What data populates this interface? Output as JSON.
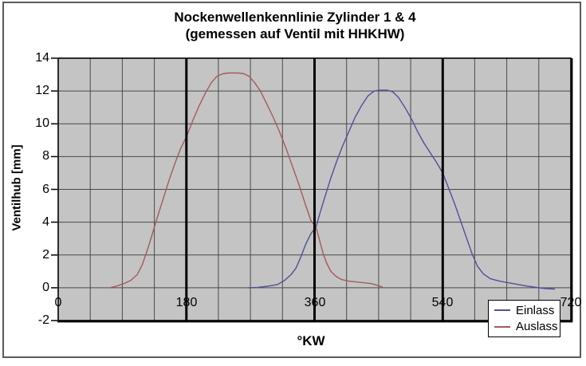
{
  "chart_data": {
    "type": "line",
    "title": "Nockenwellenkennlinie Zylinder 1 & 4",
    "subtitle": "(gemessen auf Ventil mit HHKHW)",
    "xlabel": "°KW",
    "ylabel": "Ventilhub [mm]",
    "xlim": [
      0,
      720
    ],
    "ylim": [
      -2,
      14
    ],
    "xticks": [
      0,
      180,
      360,
      540,
      720
    ],
    "yticks": [
      -2,
      0,
      2,
      4,
      6,
      8,
      10,
      12,
      14
    ],
    "x_grid_step": 45,
    "y_grid_step": 2,
    "emphasized_x_gridlines": [
      180,
      360,
      540
    ],
    "grid": true,
    "legend_position": "bottom-right",
    "colors": {
      "plot_background": "#c4c4c4",
      "grid_line": "#4a4a4a",
      "emphasized_line": "#000000",
      "plot_border": "#000000",
      "text": "#000000"
    },
    "series": [
      {
        "name": "Einlass",
        "color": "#4f4f9e",
        "points": [
          [
            266,
            0
          ],
          [
            280,
            0.02
          ],
          [
            295,
            0.1
          ],
          [
            308,
            0.2
          ],
          [
            318,
            0.45
          ],
          [
            327,
            0.8
          ],
          [
            334,
            1.2
          ],
          [
            341,
            1.9
          ],
          [
            348,
            2.7
          ],
          [
            355,
            3.3
          ],
          [
            362,
            3.7
          ],
          [
            368,
            4.6
          ],
          [
            375,
            5.6
          ],
          [
            383,
            6.7
          ],
          [
            391,
            7.7
          ],
          [
            399,
            8.6
          ],
          [
            408,
            9.5
          ],
          [
            417,
            10.4
          ],
          [
            426,
            11.1
          ],
          [
            435,
            11.7
          ],
          [
            444,
            12.0
          ],
          [
            452,
            12.05
          ],
          [
            462,
            12.05
          ],
          [
            470,
            11.95
          ],
          [
            478,
            11.6
          ],
          [
            487,
            11.0
          ],
          [
            496,
            10.3
          ],
          [
            505,
            9.5
          ],
          [
            514,
            8.8
          ],
          [
            523,
            8.2
          ],
          [
            532,
            7.6
          ],
          [
            540,
            7.0
          ],
          [
            549,
            6.0
          ],
          [
            557,
            5.1
          ],
          [
            565,
            4.1
          ],
          [
            573,
            3.1
          ],
          [
            581,
            2.1
          ],
          [
            589,
            1.3
          ],
          [
            597,
            0.85
          ],
          [
            607,
            0.55
          ],
          [
            620,
            0.4
          ],
          [
            633,
            0.3
          ],
          [
            646,
            0.2
          ],
          [
            659,
            0.1
          ],
          [
            672,
            0.02
          ],
          [
            684,
            -0.05
          ],
          [
            697,
            -0.08
          ]
        ]
      },
      {
        "name": "Auslass",
        "color": "#a65a5a",
        "points": [
          [
            72,
            0
          ],
          [
            82,
            0.1
          ],
          [
            92,
            0.25
          ],
          [
            102,
            0.45
          ],
          [
            111,
            0.8
          ],
          [
            118,
            1.4
          ],
          [
            126,
            2.4
          ],
          [
            133,
            3.4
          ],
          [
            140,
            4.4
          ],
          [
            148,
            5.5
          ],
          [
            156,
            6.6
          ],
          [
            164,
            7.6
          ],
          [
            172,
            8.5
          ],
          [
            180,
            9.2
          ],
          [
            189,
            10.2
          ],
          [
            198,
            11.1
          ],
          [
            207,
            11.9
          ],
          [
            215,
            12.5
          ],
          [
            223,
            12.9
          ],
          [
            231,
            13.05
          ],
          [
            240,
            13.1
          ],
          [
            252,
            13.1
          ],
          [
            261,
            13.05
          ],
          [
            268,
            12.9
          ],
          [
            276,
            12.5
          ],
          [
            284,
            12.0
          ],
          [
            293,
            11.2
          ],
          [
            302,
            10.4
          ],
          [
            311,
            9.5
          ],
          [
            320,
            8.5
          ],
          [
            329,
            7.4
          ],
          [
            338,
            6.3
          ],
          [
            347,
            5.1
          ],
          [
            355,
            4.1
          ],
          [
            362,
            3.7
          ],
          [
            367,
            2.9
          ],
          [
            372,
            2.1
          ],
          [
            377,
            1.5
          ],
          [
            383,
            1.0
          ],
          [
            390,
            0.7
          ],
          [
            398,
            0.5
          ],
          [
            408,
            0.4
          ],
          [
            420,
            0.35
          ],
          [
            430,
            0.3
          ],
          [
            440,
            0.25
          ],
          [
            448,
            0.15
          ],
          [
            455,
            0.05
          ]
        ]
      }
    ]
  }
}
